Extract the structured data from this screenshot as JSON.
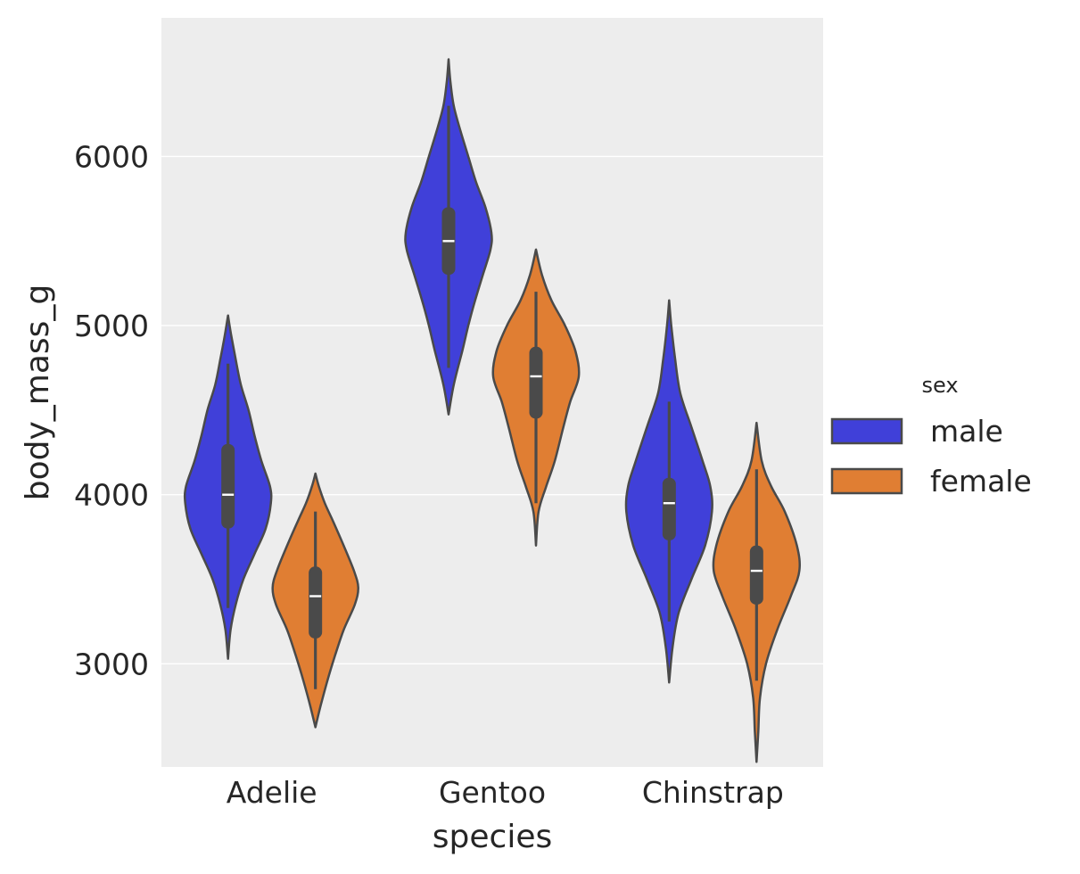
{
  "chart_data": {
    "type": "violin",
    "title": "",
    "xlabel": "species",
    "ylabel": "body_mass_g",
    "categories": [
      "Adelie",
      "Gentoo",
      "Chinstrap"
    ],
    "ylim": [
      2390,
      6820
    ],
    "yticks": [
      3000,
      4000,
      5000,
      6000
    ],
    "grid": true,
    "legend": {
      "title": "sex",
      "placement": "right"
    },
    "series": [
      {
        "name": "male",
        "color": "#4040d9",
        "values": [
          {
            "category": "Adelie",
            "min": 3330,
            "q1": 3800,
            "median": 4000,
            "q3": 4300,
            "max": 4775,
            "kde_extent": [
              3030,
              5060
            ],
            "profile": [
              [
                3030,
                0.0
              ],
              [
                3200,
                0.06
              ],
              [
                3350,
                0.18
              ],
              [
                3500,
                0.36
              ],
              [
                3650,
                0.62
              ],
              [
                3800,
                0.88
              ],
              [
                3950,
                1.0
              ],
              [
                4050,
                0.98
              ],
              [
                4200,
                0.78
              ],
              [
                4350,
                0.62
              ],
              [
                4500,
                0.48
              ],
              [
                4650,
                0.3
              ],
              [
                4800,
                0.18
              ],
              [
                4950,
                0.07
              ],
              [
                5060,
                0.0
              ]
            ]
          },
          {
            "category": "Gentoo",
            "min": 4750,
            "q1": 5300,
            "median": 5500,
            "q3": 5700,
            "max": 6300,
            "kde_extent": [
              4475,
              6575
            ],
            "profile": [
              [
                4475,
                0.0
              ],
              [
                4650,
                0.12
              ],
              [
                4850,
                0.32
              ],
              [
                5000,
                0.46
              ],
              [
                5150,
                0.62
              ],
              [
                5300,
                0.8
              ],
              [
                5450,
                0.98
              ],
              [
                5550,
                1.0
              ],
              [
                5700,
                0.86
              ],
              [
                5850,
                0.64
              ],
              [
                6000,
                0.46
              ],
              [
                6150,
                0.28
              ],
              [
                6300,
                0.12
              ],
              [
                6450,
                0.04
              ],
              [
                6575,
                0.0
              ]
            ]
          },
          {
            "category": "Chinstrap",
            "min": 3250,
            "q1": 3730,
            "median": 3950,
            "q3": 4100,
            "max": 4550,
            "kde_extent": [
              2890,
              5150
            ],
            "profile": [
              [
                2890,
                0.0
              ],
              [
                3100,
                0.08
              ],
              [
                3300,
                0.22
              ],
              [
                3500,
                0.52
              ],
              [
                3700,
                0.84
              ],
              [
                3900,
                1.0
              ],
              [
                4050,
                0.96
              ],
              [
                4200,
                0.78
              ],
              [
                4400,
                0.52
              ],
              [
                4600,
                0.26
              ],
              [
                4800,
                0.14
              ],
              [
                5000,
                0.05
              ],
              [
                5150,
                0.0
              ]
            ]
          }
        ]
      },
      {
        "name": "female",
        "color": "#e07e33",
        "values": [
          {
            "category": "Adelie",
            "min": 2850,
            "q1": 3150,
            "median": 3400,
            "q3": 3575,
            "max": 3900,
            "kde_extent": [
              2625,
              4125
            ],
            "profile": [
              [
                2625,
                0.0
              ],
              [
                2750,
                0.12
              ],
              [
                2900,
                0.28
              ],
              [
                3050,
                0.46
              ],
              [
                3200,
                0.66
              ],
              [
                3350,
                0.92
              ],
              [
                3450,
                1.0
              ],
              [
                3550,
                0.9
              ],
              [
                3700,
                0.66
              ],
              [
                3850,
                0.4
              ],
              [
                3950,
                0.22
              ],
              [
                4050,
                0.08
              ],
              [
                4125,
                0.0
              ]
            ]
          },
          {
            "category": "Gentoo",
            "min": 3950,
            "q1": 4450,
            "median": 4700,
            "q3": 4875,
            "max": 5200,
            "kde_extent": [
              3700,
              5450
            ],
            "profile": [
              [
                3700,
                0.0
              ],
              [
                3900,
                0.06
              ],
              [
                4050,
                0.24
              ],
              [
                4200,
                0.44
              ],
              [
                4400,
                0.64
              ],
              [
                4550,
                0.8
              ],
              [
                4700,
                1.0
              ],
              [
                4850,
                0.92
              ],
              [
                5000,
                0.68
              ],
              [
                5150,
                0.36
              ],
              [
                5300,
                0.14
              ],
              [
                5450,
                0.0
              ]
            ]
          },
          {
            "category": "Chinstrap",
            "min": 2900,
            "q1": 3350,
            "median": 3550,
            "q3": 3700,
            "max": 4150,
            "kde_extent": [
              2420,
              4425
            ],
            "profile": [
              [
                2420,
                0.0
              ],
              [
                2600,
                0.04
              ],
              [
                2800,
                0.08
              ],
              [
                3000,
                0.22
              ],
              [
                3200,
                0.48
              ],
              [
                3400,
                0.8
              ],
              [
                3550,
                1.0
              ],
              [
                3700,
                0.94
              ],
              [
                3900,
                0.66
              ],
              [
                4050,
                0.34
              ],
              [
                4200,
                0.12
              ],
              [
                4425,
                0.0
              ]
            ]
          }
        ]
      }
    ]
  }
}
